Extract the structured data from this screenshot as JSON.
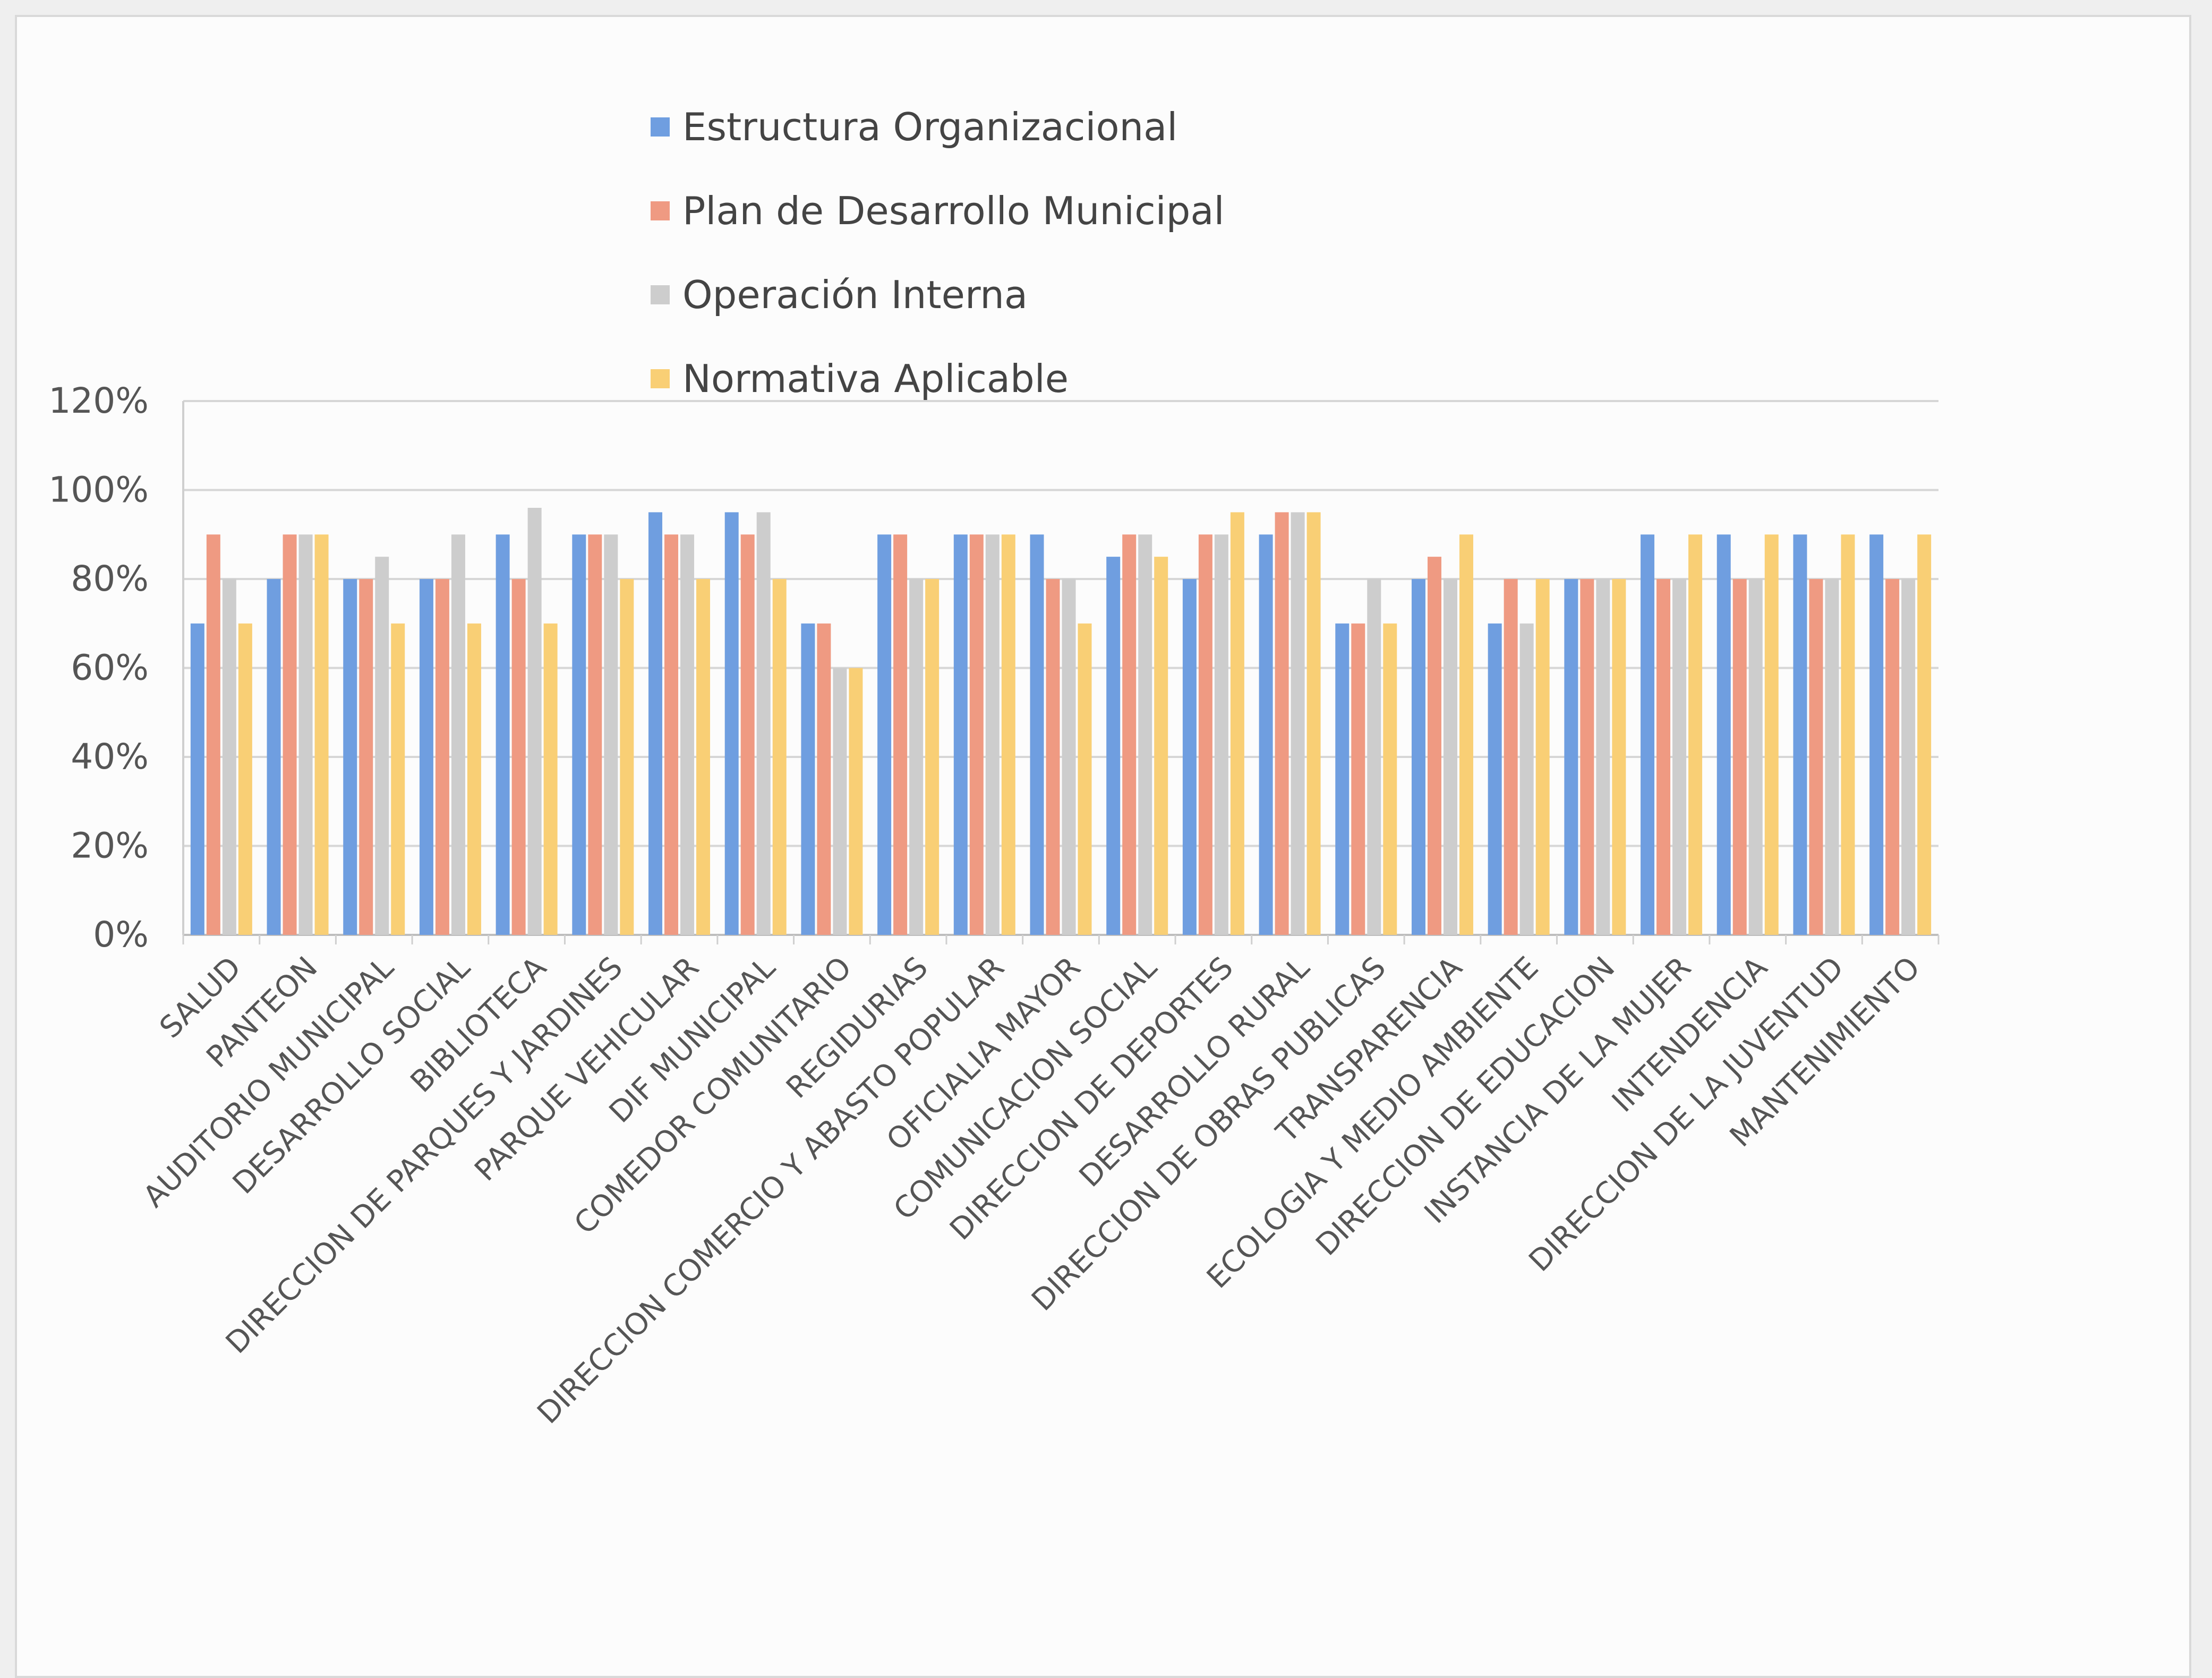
{
  "chart_data": {
    "type": "bar",
    "title": "",
    "xlabel": "",
    "ylabel": "",
    "ylim": [
      0,
      1.2
    ],
    "yticks": [
      0,
      0.2,
      0.4,
      0.6,
      0.8,
      1.0,
      1.2
    ],
    "ytick_labels": [
      "0%",
      "20%",
      "40%",
      "60%",
      "80%",
      "100%",
      "120%"
    ],
    "grid": "horizontal",
    "legend_position": "top",
    "categories": [
      "SALUD",
      "PANTEON",
      "AUDITORIO MUNICIPAL",
      "DESARROLLO SOCIAL",
      "BIBLIOTECA",
      "DIRECCION DE PARQUES Y JARDINES",
      "PARQUE VEHICULAR",
      "DIF MUNICIPAL",
      "COMEDOR COMUNITARIO",
      "REGIDURIAS",
      "DIRECCION COMERCIO Y ABASTO POPULAR",
      "OFICIALIA MAYOR",
      "COMUNICACION SOCIAL",
      "DIRECCION DE DEPORTES",
      "DESARROLLO RURAL",
      "DIRECCION DE OBRAS PUBLICAS",
      "TRANSPARENCIA",
      "ECOLOGIA Y MEDIO AMBIENTE",
      "DIRECCION DE EDUCACION",
      "INSTANCIA DE LA MUJER",
      "INTENDENCIA",
      "DIRECCION DE LA JUVENTUD",
      "MANTENIMIENTO"
    ],
    "series": [
      {
        "name": "Estructura Organizacional",
        "color": "#6f9ee0",
        "values": [
          0.7,
          0.8,
          0.8,
          0.8,
          0.9,
          0.9,
          0.95,
          0.95,
          0.7,
          0.9,
          0.9,
          0.9,
          0.85,
          0.8,
          0.9,
          0.7,
          0.8,
          0.7,
          0.8,
          0.9,
          0.9,
          0.9,
          0.9
        ]
      },
      {
        "name": "Plan de Desarrollo Municipal",
        "color": "#ef9a82",
        "values": [
          0.9,
          0.9,
          0.8,
          0.8,
          0.8,
          0.9,
          0.9,
          0.9,
          0.7,
          0.9,
          0.9,
          0.8,
          0.9,
          0.9,
          0.95,
          0.7,
          0.85,
          0.8,
          0.8,
          0.8,
          0.8,
          0.8,
          0.8
        ]
      },
      {
        "name": "Operación Interna",
        "color": "#cdcdcd",
        "values": [
          0.8,
          0.9,
          0.85,
          0.9,
          0.96,
          0.9,
          0.9,
          0.95,
          0.6,
          0.8,
          0.9,
          0.8,
          0.9,
          0.9,
          0.95,
          0.8,
          0.8,
          0.7,
          0.8,
          0.8,
          0.8,
          0.8,
          0.8
        ]
      },
      {
        "name": "Normativa Aplicable",
        "color": "#f9cf75",
        "values": [
          0.7,
          0.9,
          0.7,
          0.7,
          0.7,
          0.8,
          0.8,
          0.8,
          0.6,
          0.8,
          0.9,
          0.7,
          0.85,
          0.95,
          0.95,
          0.7,
          0.9,
          0.8,
          0.8,
          0.9,
          0.9,
          0.9,
          0.9
        ]
      }
    ]
  }
}
